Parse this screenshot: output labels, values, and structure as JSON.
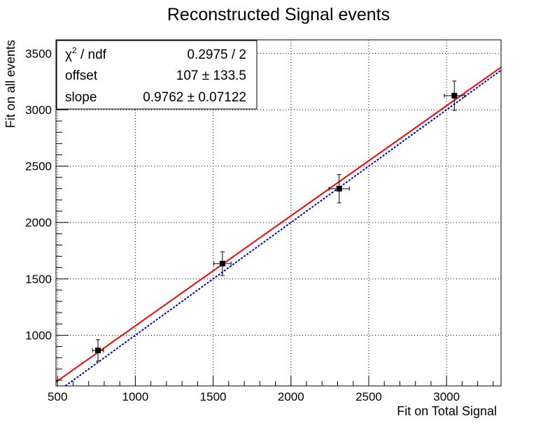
{
  "chart_data": {
    "type": "scatter",
    "title": "Reconstructed Signal events",
    "xlabel": "Fit on Total Signal",
    "ylabel": "Fit on all events",
    "xlim": [
      490,
      3350
    ],
    "ylim": [
      550,
      3620
    ],
    "x_ticks": [
      500,
      1000,
      1500,
      2000,
      2500,
      3000
    ],
    "y_ticks": [
      1000,
      1500,
      2000,
      2500,
      3000,
      3500
    ],
    "x_minor_step": 100,
    "y_minor_step": 100,
    "grid": true,
    "points": [
      {
        "x": 760,
        "y": 865,
        "xerr": 35,
        "yerr": 95
      },
      {
        "x": 1560,
        "y": 1635,
        "xerr": 55,
        "yerr": 105
      },
      {
        "x": 2310,
        "y": 2300,
        "xerr": 65,
        "yerr": 125
      },
      {
        "x": 3050,
        "y": 3125,
        "xerr": 65,
        "yerr": 130
      }
    ],
    "fit_line": {
      "offset": 107,
      "slope": 0.9762,
      "color": "#ff0000",
      "style": "solid"
    },
    "reference_line": {
      "offset": 0,
      "slope": 1,
      "color": "#0000cc",
      "style": "dotted"
    },
    "marker_color": "#000000",
    "stats_box": {
      "placement": "top-left",
      "rows": [
        {
          "label_main": "χ",
          "label_sup": "2",
          "label_rest": " / ndf",
          "value": "0.2975 / 2"
        },
        {
          "label_main": "offset",
          "label_sup": "",
          "label_rest": "",
          "value": "107 ± 133.5"
        },
        {
          "label_main": "slope",
          "label_sup": "",
          "label_rest": "",
          "value": "0.9762 ± 0.07122"
        }
      ]
    }
  }
}
